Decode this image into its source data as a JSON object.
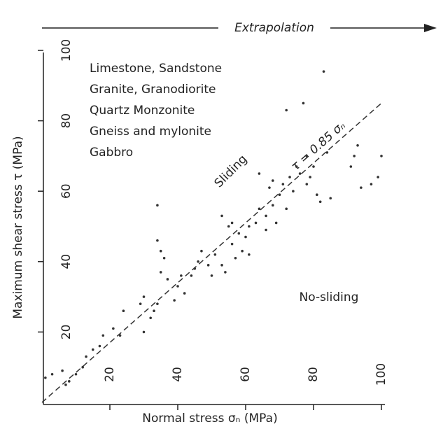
{
  "chart_data": {
    "type": "scatter",
    "banner": "Extrapolation",
    "xlabel": "Normal stress σₙ (MPa)",
    "ylabel": "Maximum shear stress τ (MPa)",
    "rock_types": [
      "Limestone, Sandstone",
      "Granite, Granodiorite",
      "Quartz Monzonite",
      "Gneiss and mylonite",
      "Gabbro"
    ],
    "annotations": [
      "Sliding",
      "No-sliding"
    ],
    "fit_line": {
      "label": "τ = 0.85 σₙ",
      "slope": 0.85
    },
    "xlim": [
      0,
      100
    ],
    "ylim": [
      0,
      100
    ],
    "xticks": [
      20,
      40,
      60,
      80,
      100
    ],
    "yticks": [
      20,
      40,
      60,
      80,
      100
    ],
    "color": "#333333",
    "x": [
      1,
      3,
      6,
      8,
      7,
      10,
      12,
      13,
      15,
      17,
      18,
      21,
      23,
      24,
      29,
      30,
      30,
      32,
      33,
      34,
      34,
      34,
      35,
      36,
      35,
      37,
      39,
      40,
      41,
      42,
      44,
      45,
      46,
      47,
      49,
      50,
      51,
      53,
      53,
      54,
      55,
      56,
      56,
      57,
      58,
      59,
      60,
      61,
      61,
      63,
      64,
      64,
      66,
      66,
      67,
      68,
      68,
      69,
      70,
      71,
      72,
      72,
      73,
      74,
      75,
      76,
      77,
      78,
      78,
      79,
      80,
      81,
      82,
      83,
      84,
      85,
      91,
      92,
      93,
      94,
      97,
      99,
      100
    ],
    "values": [
      7,
      8,
      9,
      6,
      5,
      8,
      10,
      13,
      15,
      16,
      19,
      21,
      19,
      26,
      28,
      30,
      20,
      24,
      26,
      28,
      56,
      46,
      43,
      41,
      37,
      35,
      29,
      33,
      36,
      31,
      36,
      38,
      40,
      43,
      39,
      36,
      42,
      53,
      39,
      37,
      50,
      51,
      45,
      41,
      48,
      43,
      47,
      42,
      50,
      51,
      65,
      55,
      49,
      53,
      61,
      63,
      56,
      51,
      59,
      62,
      55,
      83,
      64,
      60,
      67,
      65,
      85,
      62,
      70,
      64,
      67,
      59,
      57,
      94,
      71,
      58,
      67,
      70,
      73,
      61,
      62,
      64,
      70
    ]
  }
}
